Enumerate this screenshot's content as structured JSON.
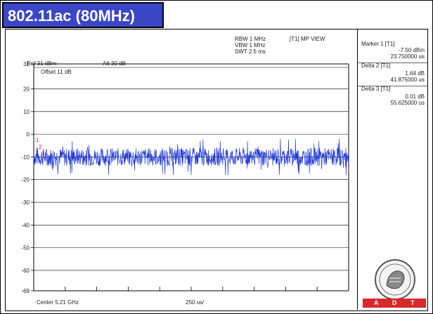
{
  "page": {
    "title": "802.11ac (80MHz)"
  },
  "analyzer": {
    "ref_level": "Ref 31 dBm",
    "attenuation": "Att  30 dB",
    "offset": "Offset 11 dB",
    "rbw": "RBW 1 MHz",
    "vbw": "VBW 1 MHz",
    "swt": "SWT 2.5 ms",
    "trace_mode": "[T1] MP VIEW",
    "center": "Center 5.21 GHz",
    "x_div": "250 us/"
  },
  "markers": [
    {
      "label": "Marker 1 [T1]",
      "value1": "-7.50 dBm",
      "value2": "23.750000 us"
    },
    {
      "label": "Delta 2 [T1]",
      "value1": "1.64 dB",
      "value2": "41.875000 us"
    },
    {
      "label": "Delta 3 [T1]",
      "value1": "0.01 dB",
      "value2": "55.625000 us"
    }
  ],
  "marker_tags": [
    "1",
    "2",
    "3"
  ],
  "logo": {
    "letters": [
      "A",
      "D",
      "T"
    ],
    "colors": {
      "bar": "#d7282a"
    }
  },
  "colors": {
    "title_bg": "#3b46c7",
    "trace": "#1f37d6",
    "grid": "#000000",
    "marker": "#e02020"
  },
  "chart_data": {
    "type": "line",
    "title": "",
    "xlabel": "250 us/",
    "ylabel": "",
    "y_ticks": [
      "31",
      "20",
      "10",
      "0",
      "-10",
      "-20",
      "-30",
      "-40",
      "-50",
      "-60",
      "-69"
    ],
    "ylim": [
      -69,
      31
    ],
    "xlim": [
      0,
      2500
    ],
    "x_unit": "us",
    "grid": true,
    "series": [
      {
        "mean": -10,
        "noise_range": [
          -18,
          -2
        ]
      }
    ]
  }
}
